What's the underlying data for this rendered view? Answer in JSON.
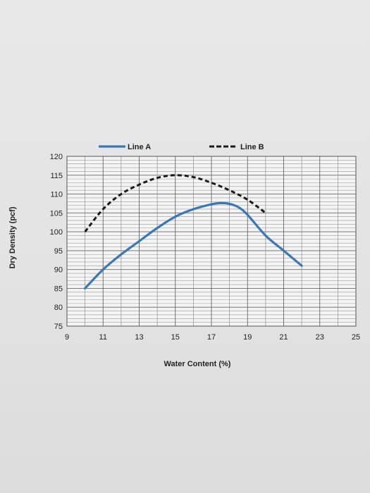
{
  "chart_data": {
    "type": "line",
    "xlabel": "Water Content (%)",
    "ylabel": "Dry Density (pcf)",
    "xlim": [
      9,
      25
    ],
    "ylim": [
      75,
      120
    ],
    "xticks": [
      9,
      11,
      13,
      15,
      17,
      19,
      21,
      23,
      25
    ],
    "yticks": [
      75,
      80,
      85,
      90,
      95,
      100,
      105,
      110,
      115,
      120
    ],
    "grid": true,
    "legend_position": "top",
    "series": [
      {
        "name": "Line A",
        "color": "#3a78b5",
        "style": "solid",
        "x": [
          10,
          11,
          12,
          13,
          14,
          15,
          16,
          17,
          17.5,
          18,
          18.5,
          19,
          20,
          21,
          22
        ],
        "y": [
          85,
          90,
          94,
          97.5,
          101,
          104,
          106,
          107.3,
          107.6,
          107.4,
          106.5,
          104.5,
          99,
          95,
          91
        ]
      },
      {
        "name": "Line B",
        "color": "#1a1a1a",
        "style": "dashed",
        "x": [
          10,
          11,
          12,
          13,
          14,
          15,
          16,
          17,
          18,
          19,
          20
        ],
        "y": [
          100,
          106,
          110,
          112.5,
          114.3,
          115,
          114.5,
          113,
          111,
          108.5,
          105
        ]
      }
    ]
  }
}
